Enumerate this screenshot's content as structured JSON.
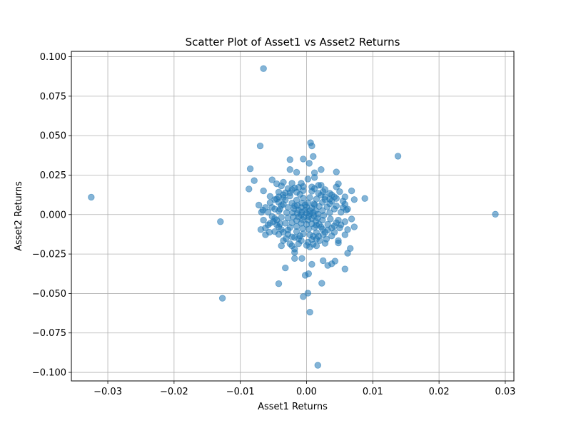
{
  "chart_data": {
    "type": "scatter",
    "title": "Scatter Plot of Asset1 vs Asset2 Returns",
    "xlabel": "Asset1 Returns",
    "ylabel": "Asset2 Returns",
    "xlim": [
      -0.0355,
      0.0313
    ],
    "ylim": [
      -0.1054,
      0.1034
    ],
    "xticks": [
      -0.03,
      -0.02,
      -0.01,
      0.0,
      0.01,
      0.02,
      0.03
    ],
    "xtick_labels": [
      "−0.03",
      "−0.02",
      "−0.01",
      "0.00",
      "0.01",
      "0.02",
      "0.03"
    ],
    "yticks": [
      -0.1,
      -0.075,
      -0.05,
      -0.025,
      0.0,
      0.025,
      0.05,
      0.075,
      0.1
    ],
    "ytick_labels": [
      "−0.100",
      "−0.075",
      "−0.050",
      "−0.025",
      "0.000",
      "0.025",
      "0.050",
      "0.075",
      "0.100"
    ],
    "grid": true,
    "marker_color": "#1f77b4",
    "marker_alpha": 0.55,
    "series": [
      {
        "points": [
          [
            -0.0325,
            0.011
          ],
          [
            -0.013,
            -0.0045
          ],
          [
            -0.0127,
            -0.053
          ],
          [
            -0.0065,
            0.0925
          ],
          [
            0.0285,
            0.0002
          ],
          [
            0.0138,
            0.037
          ],
          [
            0.0017,
            -0.0955
          ],
          [
            -0.007,
            0.0435
          ],
          [
            -0.0085,
            0.029
          ],
          [
            -0.0079,
            0.0215
          ],
          [
            -0.0087,
            0.0162
          ],
          [
            -0.0065,
            0.015
          ],
          [
            -0.0072,
            0.006
          ],
          [
            -0.0069,
            -0.0095
          ],
          [
            -0.0062,
            -0.0128
          ],
          [
            -0.0052,
            0.022
          ],
          [
            -0.0055,
            0.0115
          ],
          [
            -0.0042,
            0.0112
          ],
          [
            -0.0045,
            0.0195
          ],
          [
            -0.0035,
            0.0205
          ],
          [
            -0.0025,
            0.0285
          ],
          [
            -0.0025,
            0.0348
          ],
          [
            -0.0015,
            0.0268
          ],
          [
            -0.0005,
            0.0352
          ],
          [
            0.0002,
            0.0225
          ],
          [
            0.0004,
            0.0325
          ],
          [
            0.0006,
            0.0455
          ],
          [
            0.0008,
            0.0435
          ],
          [
            0.001,
            0.0368
          ],
          [
            0.0012,
            0.0265
          ],
          [
            0.0022,
            0.0285
          ],
          [
            0.0045,
            0.027
          ],
          [
            0.0068,
            0.015
          ],
          [
            0.0088,
            0.0102
          ],
          [
            0.0072,
            0.0095
          ],
          [
            0.0062,
            0.0035
          ],
          [
            0.0072,
            -0.0078
          ],
          [
            0.0066,
            -0.0215
          ],
          [
            0.0058,
            -0.0128
          ],
          [
            0.0058,
            -0.0345
          ],
          [
            0.0062,
            -0.0245
          ],
          [
            0.0048,
            -0.018
          ],
          [
            0.0043,
            -0.0295
          ],
          [
            0.0038,
            -0.0312
          ],
          [
            0.0032,
            -0.0322
          ],
          [
            0.0025,
            -0.0292
          ],
          [
            0.0023,
            -0.0435
          ],
          [
            0.0008,
            -0.0315
          ],
          [
            0.0003,
            -0.0375
          ],
          [
            -0.0002,
            -0.0385
          ],
          [
            0.0002,
            -0.0498
          ],
          [
            -0.0005,
            -0.052
          ],
          [
            0.0005,
            -0.0618
          ],
          [
            -0.0042,
            -0.0438
          ],
          [
            -0.0032,
            -0.0338
          ],
          [
            -0.0018,
            -0.0278
          ],
          [
            -0.0007,
            -0.0278
          ],
          [
            -0.0018,
            -0.024
          ],
          [
            -0.0018,
            -0.0218
          ],
          [
            -0.0038,
            -0.0198
          ],
          [
            -0.0022,
            -0.0198
          ],
          [
            -0.0031,
            -0.0152
          ],
          [
            -0.0056,
            -0.0112
          ],
          [
            -0.0062,
            -0.0085
          ],
          [
            -0.0058,
            -0.0065
          ],
          [
            -0.0068,
            0.0015
          ],
          [
            -0.0066,
            0.0028
          ],
          [
            -0.0048,
            0.0095
          ],
          [
            0.0005,
            -0.0205
          ],
          [
            0.0015,
            -0.0198
          ],
          [
            0.0028,
            -0.0182
          ],
          [
            0.0038,
            -0.0135
          ],
          [
            0.0052,
            -0.0065
          ],
          [
            0.0055,
            0.0085
          ],
          [
            0.005,
            0.0145
          ],
          [
            0.0048,
            0.0195
          ],
          [
            0.0058,
            0.0112
          ],
          [
            0.0042,
            0.0112
          ],
          [
            0.0035,
            0.0098
          ],
          [
            0.0022,
            0.0185
          ],
          [
            0.0008,
            0.0175
          ],
          [
            0.0012,
            0.0235
          ],
          [
            -0.0005,
            0.0178
          ],
          [
            -0.0022,
            0.0198
          ],
          [
            -0.0038,
            0.0182
          ],
          [
            -0.0042,
            0.0142
          ],
          [
            -0.0032,
            0.0138
          ],
          [
            -0.0035,
            0.0065
          ],
          [
            -0.0052,
            0.0045
          ],
          [
            -0.0058,
            0.0015
          ],
          [
            -0.0048,
            -0.0025
          ],
          [
            -0.0045,
            -0.0065
          ],
          [
            -0.0038,
            -0.0095
          ],
          [
            -0.0028,
            -0.0125
          ],
          [
            -0.0018,
            -0.0145
          ],
          [
            -0.0008,
            -0.0165
          ],
          [
            0.0002,
            -0.0175
          ],
          [
            0.0015,
            -0.0155
          ],
          [
            0.0025,
            -0.0128
          ],
          [
            0.0032,
            -0.0098
          ],
          [
            0.0042,
            -0.0072
          ],
          [
            0.0048,
            -0.0035
          ],
          [
            0.0052,
            0.0015
          ],
          [
            0.0045,
            0.0055
          ],
          [
            0.0038,
            0.0085
          ],
          [
            0.0028,
            0.0112
          ],
          [
            0.0018,
            0.0135
          ],
          [
            0.0008,
            0.0148
          ],
          [
            -0.0005,
            0.0152
          ],
          [
            -0.0015,
            0.0142
          ],
          [
            -0.0025,
            0.0118
          ],
          [
            -0.0032,
            0.0092
          ],
          [
            -0.0038,
            0.0058
          ],
          [
            -0.0042,
            0.0022
          ],
          [
            -0.0038,
            -0.0018
          ],
          [
            -0.0032,
            -0.0055
          ],
          [
            -0.0025,
            -0.0082
          ],
          [
            -0.0015,
            -0.0108
          ],
          [
            -0.0005,
            -0.0122
          ],
          [
            0.0005,
            -0.0128
          ],
          [
            0.0015,
            -0.0115
          ],
          [
            0.0024,
            -0.0092
          ],
          [
            0.0032,
            -0.0062
          ],
          [
            0.0036,
            -0.0028
          ],
          [
            0.0035,
            0.0012
          ],
          [
            0.0031,
            0.0048
          ],
          [
            0.0024,
            0.0078
          ],
          [
            0.0015,
            0.0098
          ],
          [
            0.0005,
            0.0108
          ],
          [
            -0.0005,
            0.0105
          ],
          [
            -0.0015,
            0.0092
          ],
          [
            -0.0022,
            0.0072
          ],
          [
            -0.0028,
            0.0045
          ],
          [
            -0.003,
            0.0012
          ],
          [
            -0.0028,
            -0.0022
          ],
          [
            -0.0022,
            -0.0052
          ],
          [
            -0.0015,
            -0.0075
          ],
          [
            -0.0006,
            -0.0088
          ],
          [
            0.0003,
            -0.0092
          ],
          [
            0.0012,
            -0.0082
          ],
          [
            0.0019,
            -0.0062
          ],
          [
            0.0024,
            -0.0035
          ],
          [
            0.0026,
            -0.0005
          ],
          [
            0.0024,
            0.0025
          ],
          [
            0.0019,
            0.0052
          ],
          [
            0.0011,
            0.0068
          ],
          [
            0.0002,
            0.0075
          ],
          [
            -0.0007,
            0.0072
          ],
          [
            -0.0014,
            0.0058
          ],
          [
            -0.0019,
            0.0038
          ],
          [
            -0.0021,
            0.0012
          ],
          [
            -0.002,
            -0.0015
          ],
          [
            -0.0015,
            -0.0038
          ],
          [
            -0.0008,
            -0.0055
          ],
          [
            0.0,
            -0.0062
          ],
          [
            0.0008,
            -0.0058
          ],
          [
            0.0014,
            -0.0042
          ],
          [
            0.0017,
            -0.0022
          ],
          [
            0.0017,
            0.0002
          ],
          [
            0.0014,
            0.0025
          ],
          [
            0.0008,
            0.0042
          ],
          [
            0.0,
            0.0048
          ],
          [
            -0.0008,
            0.0045
          ],
          [
            -0.0012,
            0.0028
          ],
          [
            -0.0014,
            0.0008
          ],
          [
            -0.0012,
            -0.0015
          ],
          [
            -0.0006,
            -0.0032
          ],
          [
            0.0002,
            -0.0035
          ],
          [
            0.0008,
            -0.0025
          ],
          [
            0.0011,
            -0.0008
          ],
          [
            0.001,
            0.0012
          ],
          [
            0.0005,
            0.0025
          ],
          [
            -0.0002,
            0.0028
          ],
          [
            -0.0007,
            0.0015
          ],
          [
            -0.0008,
            -0.0002
          ],
          [
            -0.0004,
            -0.0015
          ],
          [
            0.0003,
            -0.0012
          ],
          [
            0.0005,
            0.0005
          ],
          [
            0.0,
            0.0008
          ],
          [
            0.0068,
            -0.0028
          ],
          [
            0.0062,
            -0.0095
          ],
          [
            0.0055,
            0.0045
          ],
          [
            0.0048,
            -0.0165
          ],
          [
            0.0045,
            0.0175
          ],
          [
            0.0035,
            0.0135
          ],
          [
            0.0028,
            0.0158
          ],
          [
            0.0018,
            0.0185
          ],
          [
            -0.0008,
            0.0198
          ],
          [
            -0.0018,
            0.0168
          ],
          [
            -0.0028,
            0.0165
          ],
          [
            -0.0045,
            0.0098
          ],
          [
            -0.0055,
            0.0075
          ],
          [
            -0.0062,
            0.0045
          ],
          [
            -0.0065,
            -0.0035
          ],
          [
            -0.0055,
            -0.0055
          ],
          [
            -0.0048,
            -0.0108
          ],
          [
            -0.0042,
            -0.0125
          ],
          [
            -0.0035,
            -0.0165
          ],
          [
            -0.0025,
            -0.0185
          ],
          [
            -0.0012,
            -0.0185
          ],
          [
            0.0,
            -0.0195
          ],
          [
            0.001,
            -0.0188
          ],
          [
            0.002,
            -0.0165
          ],
          [
            0.003,
            -0.0155
          ],
          [
            0.0042,
            -0.0112
          ],
          [
            0.005,
            -0.0085
          ],
          [
            0.0058,
            -0.0045
          ],
          [
            0.006,
            0.0028
          ],
          [
            0.0058,
            0.0065
          ],
          [
            0.0045,
            0.0102
          ],
          [
            0.0038,
            0.0125
          ],
          [
            0.0025,
            0.0145
          ],
          [
            0.0012,
            0.0165
          ],
          [
            -0.0012,
            0.0172
          ],
          [
            -0.0022,
            0.0158
          ],
          [
            -0.0035,
            0.0125
          ],
          [
            -0.0042,
            0.0078
          ],
          [
            -0.0048,
            0.0035
          ],
          [
            -0.0052,
            -0.0012
          ],
          [
            -0.005,
            -0.0045
          ],
          [
            -0.0042,
            -0.0078
          ],
          [
            -0.0035,
            -0.0112
          ],
          [
            -0.0022,
            -0.0142
          ],
          [
            -0.0012,
            -0.0152
          ],
          [
            0.0008,
            -0.0158
          ],
          [
            0.0018,
            -0.0138
          ],
          [
            0.0028,
            -0.0112
          ],
          [
            0.0038,
            -0.0085
          ],
          [
            0.0045,
            -0.0052
          ],
          [
            0.0042,
            0.0035
          ],
          [
            0.0035,
            0.0068
          ],
          [
            0.0028,
            0.0095
          ],
          [
            0.0022,
            0.0122
          ],
          [
            -0.001,
            0.0128
          ],
          [
            -0.0025,
            0.0138
          ],
          [
            -0.0035,
            0.0108
          ],
          [
            -0.004,
            0.0035
          ],
          [
            -0.0045,
            -0.0035
          ],
          [
            -0.004,
            -0.0058
          ],
          [
            -0.0028,
            -0.0098
          ],
          [
            -0.001,
            -0.0135
          ],
          [
            0.001,
            -0.0138
          ],
          [
            0.0022,
            -0.0078
          ],
          [
            0.0012,
            0.0062
          ],
          [
            -0.0002,
            0.0062
          ],
          [
            -0.0018,
            0.0055
          ],
          [
            0.0015,
            -0.0068
          ]
        ]
      }
    ]
  }
}
